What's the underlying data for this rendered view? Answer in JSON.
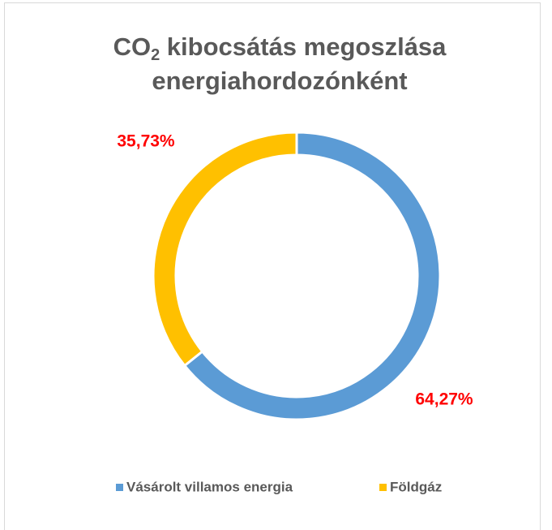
{
  "chart_data": {
    "type": "donut",
    "title": [
      "CO",
      "2",
      " kibocsátás megoszlása",
      "energiahordozónként"
    ],
    "categories": [
      "Vásárolt villamos energia",
      "Földgáz"
    ],
    "values": [
      64.27,
      35.73
    ],
    "value_labels": [
      "64,27%",
      "35,73%"
    ],
    "colors": [
      "#5b9bd5",
      "#ffc000"
    ],
    "legend": "bottom"
  }
}
